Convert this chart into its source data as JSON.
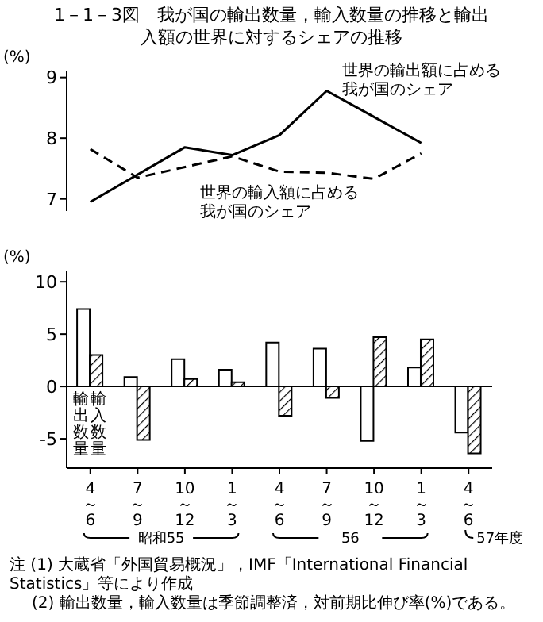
{
  "chart_data": [
    {
      "type": "line",
      "title": "1－1－3図　我が国の輸出数量，輸入数量の推移と輸出入額の世界に対するシェアの推移",
      "ylabel": "(%)",
      "categories": [
        "4～6",
        "7～9",
        "10～12",
        "1～3",
        "4～6",
        "7～9",
        "10～12",
        "1～3",
        "4～6"
      ],
      "tick_labels": "y",
      "ylim": [
        6.8,
        9.1
      ],
      "yticks": [
        7,
        8,
        9
      ],
      "marker": "none",
      "series": [
        {
          "name": "世界の輸出額に占める我が国のシェア",
          "color": "#000000",
          "line_style": "solid",
          "values": [
            6.95,
            null,
            7.85,
            7.72,
            8.05,
            8.78,
            8.35,
            7.92,
            null
          ]
        },
        {
          "name": "世界の輸入額に占める我が国のシェア",
          "color": "#000000",
          "line_style": "dashed",
          "values": [
            7.82,
            7.35,
            null,
            7.7,
            7.45,
            7.43,
            7.33,
            7.75,
            null
          ]
        }
      ]
    },
    {
      "type": "bar",
      "ylabel": "(%)",
      "categories": [
        "4～6",
        "7～9",
        "10～12",
        "1～3",
        "4～6",
        "7～9",
        "10～12",
        "1～3",
        "4～6"
      ],
      "ylim": [
        -7.8,
        11
      ],
      "yticks": [
        10,
        5,
        0,
        -5
      ],
      "ref_lines": [
        {
          "axis": "y",
          "value": 0
        }
      ],
      "annotations": [
        "昭和55",
        "56",
        "57年度",
        "注 (1) 大蔵省「外国貿易概況」，IMF「International Financial Statistics」等により作成",
        "(2) 輸出数量，輸入数量は季節調整済，対前期比伸び率(%)である。"
      ],
      "series": [
        {
          "name": "輸出数量",
          "color": "#ffffff",
          "values": [
            7.4,
            0.9,
            2.6,
            1.6,
            4.2,
            3.6,
            -5.2,
            1.8,
            -4.4
          ]
        },
        {
          "name": "輸入数量",
          "color": "#000000",
          "values": [
            3.0,
            -5.1,
            0.7,
            0.4,
            -2.8,
            -1.1,
            4.7,
            4.5,
            -6.4
          ]
        }
      ]
    }
  ]
}
